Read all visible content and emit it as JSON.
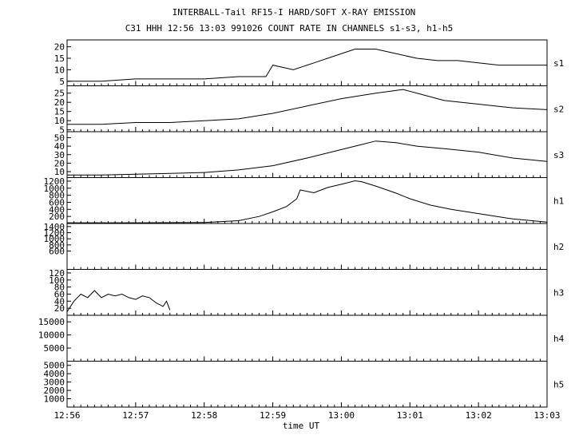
{
  "title": "INTERBALL-Tail RF15-I HARD/SOFT X-RAY EMISSION",
  "subtitle": "C31 HHH 12:56 13:03 991026  COUNT RATE IN CHANNELS s1-s3, h1-h5",
  "chart_data": {
    "type": "line",
    "title": "INTERBALL-Tail RF15-I HARD/SOFT X-RAY EMISSION",
    "subtitle": "C31 HHH 12:56 13:03 991026  COUNT RATE IN CHANNELS s1-s3, h1-h5",
    "xlabel": "time UT",
    "x_ticks": [
      "12:56",
      "12:57",
      "12:58",
      "12:59",
      "13:00",
      "13:01",
      "13:02",
      "13:03"
    ],
    "x_range_minutes": [
      0,
      7
    ],
    "grid": false,
    "panels": [
      {
        "name": "s1",
        "ylim": [
          3,
          23
        ],
        "ytick_values": [
          5,
          10,
          15,
          20
        ],
        "ytick_labels": [
          "5",
          "10",
          "15",
          "20"
        ],
        "series": [
          {
            "t": 0.0,
            "v": 5
          },
          {
            "t": 0.5,
            "v": 5
          },
          {
            "t": 1.0,
            "v": 6
          },
          {
            "t": 1.5,
            "v": 6
          },
          {
            "t": 2.0,
            "v": 6
          },
          {
            "t": 2.5,
            "v": 7
          },
          {
            "t": 2.9,
            "v": 7
          },
          {
            "t": 3.0,
            "v": 12
          },
          {
            "t": 3.3,
            "v": 10
          },
          {
            "t": 3.6,
            "v": 13
          },
          {
            "t": 3.9,
            "v": 16
          },
          {
            "t": 4.2,
            "v": 19
          },
          {
            "t": 4.5,
            "v": 19
          },
          {
            "t": 4.8,
            "v": 17
          },
          {
            "t": 5.1,
            "v": 15
          },
          {
            "t": 5.4,
            "v": 14
          },
          {
            "t": 5.7,
            "v": 14
          },
          {
            "t": 6.0,
            "v": 13
          },
          {
            "t": 6.3,
            "v": 12
          },
          {
            "t": 6.6,
            "v": 12
          },
          {
            "t": 7.0,
            "v": 12
          }
        ]
      },
      {
        "name": "s2",
        "ylim": [
          4,
          29
        ],
        "ytick_values": [
          5,
          10,
          15,
          20,
          25
        ],
        "ytick_labels": [
          "5",
          "10",
          "15",
          "20",
          "25"
        ],
        "series": [
          {
            "t": 0.0,
            "v": 8
          },
          {
            "t": 0.5,
            "v": 8
          },
          {
            "t": 1.0,
            "v": 9
          },
          {
            "t": 1.5,
            "v": 9
          },
          {
            "t": 2.0,
            "v": 10
          },
          {
            "t": 2.5,
            "v": 11
          },
          {
            "t": 3.0,
            "v": 14
          },
          {
            "t": 3.5,
            "v": 18
          },
          {
            "t": 4.0,
            "v": 22
          },
          {
            "t": 4.5,
            "v": 25
          },
          {
            "t": 4.9,
            "v": 27
          },
          {
            "t": 5.2,
            "v": 24
          },
          {
            "t": 5.5,
            "v": 21
          },
          {
            "t": 6.0,
            "v": 19
          },
          {
            "t": 6.5,
            "v": 17
          },
          {
            "t": 7.0,
            "v": 16
          }
        ]
      },
      {
        "name": "s3",
        "ylim": [
          3,
          57
        ],
        "ytick_values": [
          10,
          20,
          30,
          40,
          50
        ],
        "ytick_labels": [
          "10",
          "20",
          "30",
          "40",
          "50"
        ],
        "series": [
          {
            "t": 0.0,
            "v": 6
          },
          {
            "t": 0.5,
            "v": 6
          },
          {
            "t": 1.0,
            "v": 7
          },
          {
            "t": 1.5,
            "v": 8
          },
          {
            "t": 2.0,
            "v": 9
          },
          {
            "t": 2.5,
            "v": 12
          },
          {
            "t": 3.0,
            "v": 17
          },
          {
            "t": 3.5,
            "v": 26
          },
          {
            "t": 4.0,
            "v": 36
          },
          {
            "t": 4.3,
            "v": 42
          },
          {
            "t": 4.5,
            "v": 46
          },
          {
            "t": 4.8,
            "v": 44
          },
          {
            "t": 5.1,
            "v": 40
          },
          {
            "t": 5.5,
            "v": 37
          },
          {
            "t": 6.0,
            "v": 33
          },
          {
            "t": 6.5,
            "v": 26
          },
          {
            "t": 7.0,
            "v": 22
          }
        ]
      },
      {
        "name": "h1",
        "ylim": [
          0,
          1300
        ],
        "ytick_values": [
          200,
          400,
          600,
          800,
          1000,
          1200
        ],
        "ytick_labels": [
          "200",
          "400",
          "600",
          "800",
          "1000",
          "1200"
        ],
        "series": [
          {
            "t": 0.0,
            "v": 20
          },
          {
            "t": 1.0,
            "v": 20
          },
          {
            "t": 2.0,
            "v": 30
          },
          {
            "t": 2.5,
            "v": 80
          },
          {
            "t": 2.8,
            "v": 200
          },
          {
            "t": 3.0,
            "v": 330
          },
          {
            "t": 3.2,
            "v": 480
          },
          {
            "t": 3.35,
            "v": 700
          },
          {
            "t": 3.4,
            "v": 950
          },
          {
            "t": 3.6,
            "v": 870
          },
          {
            "t": 3.8,
            "v": 1020
          },
          {
            "t": 4.0,
            "v": 1110
          },
          {
            "t": 4.2,
            "v": 1210
          },
          {
            "t": 4.3,
            "v": 1180
          },
          {
            "t": 4.5,
            "v": 1060
          },
          {
            "t": 4.8,
            "v": 860
          },
          {
            "t": 5.0,
            "v": 700
          },
          {
            "t": 5.3,
            "v": 520
          },
          {
            "t": 5.6,
            "v": 400
          },
          {
            "t": 6.0,
            "v": 280
          },
          {
            "t": 6.5,
            "v": 130
          },
          {
            "t": 7.0,
            "v": 40
          }
        ]
      },
      {
        "name": "h2",
        "ylim": [
          0,
          1500
        ],
        "ytick_values": [
          600,
          800,
          1000,
          1200,
          1400
        ],
        "ytick_labels": [
          "600",
          "800",
          "1000",
          "1200",
          "1400"
        ],
        "series": []
      },
      {
        "name": "h3",
        "ylim": [
          0,
          130
        ],
        "ytick_values": [
          20,
          40,
          60,
          80,
          100,
          120
        ],
        "ytick_labels": [
          "20",
          "40",
          "60",
          "80",
          "100",
          "120"
        ],
        "series": [
          {
            "t": 0.0,
            "v": 10
          },
          {
            "t": 0.1,
            "v": 40
          },
          {
            "t": 0.2,
            "v": 60
          },
          {
            "t": 0.3,
            "v": 50
          },
          {
            "t": 0.4,
            "v": 70
          },
          {
            "t": 0.5,
            "v": 50
          },
          {
            "t": 0.6,
            "v": 60
          },
          {
            "t": 0.7,
            "v": 55
          },
          {
            "t": 0.8,
            "v": 60
          },
          {
            "t": 0.9,
            "v": 50
          },
          {
            "t": 1.0,
            "v": 45
          },
          {
            "t": 1.1,
            "v": 55
          },
          {
            "t": 1.2,
            "v": 50
          },
          {
            "t": 1.3,
            "v": 35
          },
          {
            "t": 1.4,
            "v": 25
          },
          {
            "t": 1.45,
            "v": 40
          },
          {
            "t": 1.5,
            "v": 15
          }
        ]
      },
      {
        "name": "h4",
        "ylim": [
          0,
          17500
        ],
        "ytick_values": [
          5000,
          10000,
          15000
        ],
        "ytick_labels": [
          "5000",
          "10000",
          "15000"
        ],
        "series": []
      },
      {
        "name": "h5",
        "ylim": [
          0,
          5500
        ],
        "ytick_values": [
          1000,
          2000,
          3000,
          4000,
          5000
        ],
        "ytick_labels": [
          "1000",
          "2000",
          "3000",
          "4000",
          "5000"
        ],
        "series": []
      }
    ]
  }
}
